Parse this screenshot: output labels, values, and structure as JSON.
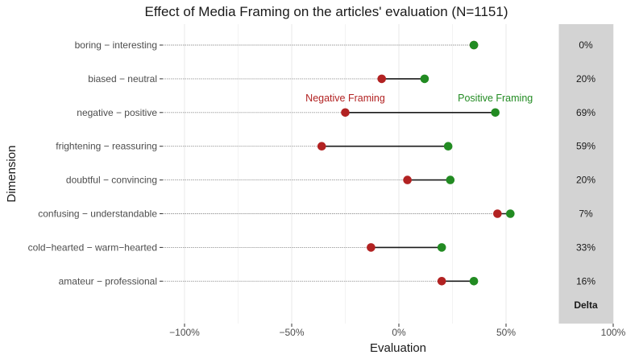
{
  "chart_data": {
    "type": "dumbbell",
    "title": "Effect of Media Framing on the articles' evaluation (N=1151)",
    "xlabel": "Evaluation",
    "ylabel": "Dimension",
    "xlim": [
      -100,
      100
    ],
    "x_ticks": [
      -100,
      -50,
      0,
      50,
      100
    ],
    "x_tick_labels": [
      "−100%",
      "−50%",
      "0%",
      "50%",
      "100%"
    ],
    "grid": true,
    "categories": [
      "boring − interesting",
      "biased − neutral",
      "negative − positive",
      "frightening − reassuring",
      "doubtful − convincing",
      "confusing − understandable",
      "cold−hearted − warm−hearted",
      "amateur − professional"
    ],
    "series": [
      {
        "name": "Negative Framing",
        "color": "#b22222",
        "values": [
          35,
          -8,
          -25,
          -36,
          4,
          46,
          -13,
          20
        ]
      },
      {
        "name": "Positive Framing",
        "color": "#228b22",
        "values": [
          35,
          12,
          45,
          23,
          24,
          52,
          20,
          35
        ]
      }
    ],
    "delta": {
      "header": "Delta",
      "values": [
        "0%",
        "20%",
        "69%",
        "59%",
        "20%",
        "7%",
        "33%",
        "16%"
      ]
    },
    "colors": {
      "delta_band": "#d3d3d3",
      "segment": "#1a1a1a",
      "guide_line": "#999999",
      "grid": "#ebebeb"
    }
  }
}
